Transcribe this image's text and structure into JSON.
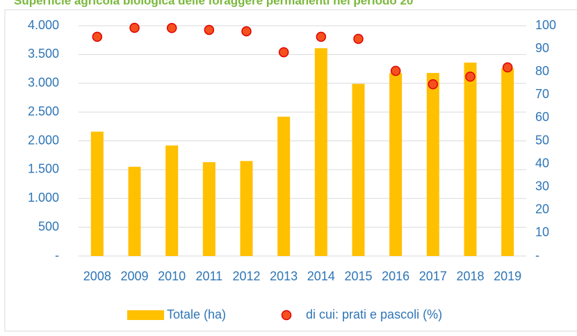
{
  "chart_data": {
    "type": "bar",
    "title": "Superficie agricola biologica delle foraggere permanenti nel periodo 20",
    "categories": [
      "2008",
      "2009",
      "2010",
      "2011",
      "2012",
      "2013",
      "2014",
      "2015",
      "2016",
      "2017",
      "2018",
      "2019"
    ],
    "series": [
      {
        "name": "Totale (ha)",
        "type": "bar",
        "color": "#ffc000",
        "axis": "y",
        "values": [
          2160,
          1550,
          1920,
          1630,
          1650,
          2420,
          3610,
          2990,
          3180,
          3180,
          3360,
          3260
        ]
      },
      {
        "name": "di cui: prati e pascoli (%)",
        "type": "scatter",
        "color": "#f4511e",
        "axis": "y2",
        "values": [
          95.2,
          99.1,
          99,
          98.2,
          97.6,
          88.5,
          95.2,
          94.3,
          80.4,
          74.6,
          77.9,
          81.9
        ]
      }
    ],
    "ylim": [
      0,
      4000
    ],
    "yticks": [
      {
        "value": 0,
        "label": "-"
      },
      500,
      {
        "value": 1000,
        "label": "1.000"
      },
      {
        "value": 1500,
        "label": "1.500"
      },
      {
        "value": 2000,
        "label": "2.000"
      },
      {
        "value": 2500,
        "label": "2.500"
      },
      {
        "value": 3000,
        "label": "3.000"
      },
      {
        "value": 3500,
        "label": "3.500"
      },
      {
        "value": 4000,
        "label": "4.000"
      }
    ],
    "y2lim": [
      0,
      100
    ],
    "y2ticks": [
      {
        "value": 0,
        "label": "-"
      },
      10,
      20,
      30,
      40,
      50,
      60,
      70,
      80,
      90,
      100
    ],
    "grid": true,
    "legend": "bottom"
  }
}
